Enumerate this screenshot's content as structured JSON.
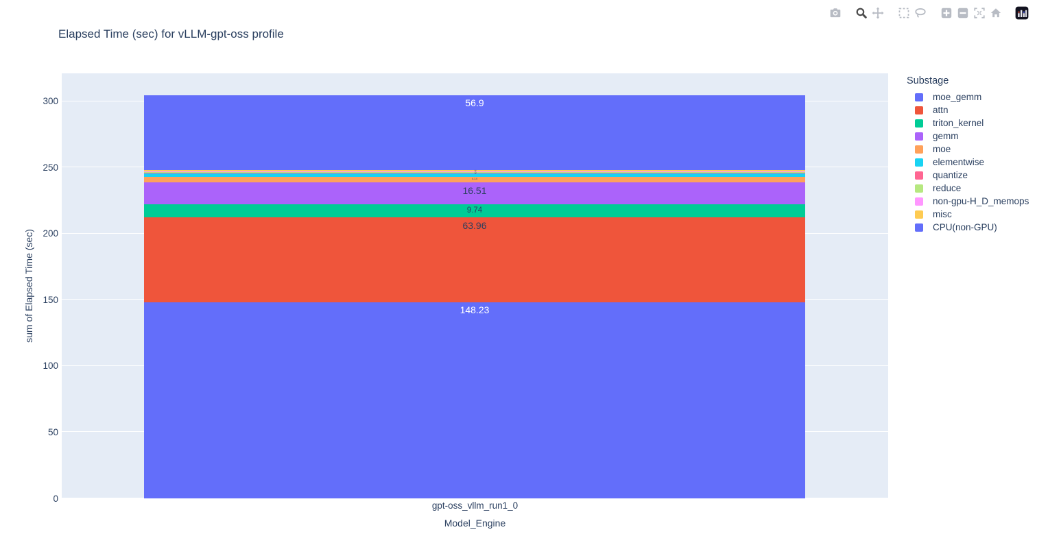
{
  "header": {
    "title": "Elapsed Time (sec) for vLLM-gpt-oss profile"
  },
  "toolbar": {
    "icons": [
      "camera",
      "zoom",
      "pan",
      "box-select",
      "lasso-select",
      "zoom-in",
      "zoom-out",
      "autoscale",
      "reset-axes",
      "plotly-logo"
    ]
  },
  "colors": {
    "plot_background": "#E5ECF6",
    "grid": "#ffffff",
    "text": "#2a3f5f",
    "modebar_icon": "#b8bcc4",
    "modebar_icon_active": "#4c4c4c"
  },
  "chart_data": {
    "type": "bar",
    "stacked": true,
    "title": "Elapsed Time (sec) for vLLM-gpt-oss profile",
    "xlabel": "Model_Engine",
    "ylabel": "sum of Elapsed Time (sec)",
    "categories": [
      "gpt-oss_vllm_run1_0"
    ],
    "ylim": [
      0,
      321
    ],
    "yticks": [
      0,
      50,
      100,
      150,
      200,
      250,
      300
    ],
    "grid": true,
    "legend": {
      "title": "Substage",
      "position": "right"
    },
    "series": [
      {
        "name": "moe_gemm",
        "color": "#636EFA",
        "value": 148.23,
        "label": "148.23",
        "label_color": "#ffffff",
        "label_size": "normal"
      },
      {
        "name": "attn",
        "color": "#EF553B",
        "value": 63.96,
        "label": "63.96",
        "label_color": "#2a3f5f",
        "label_size": "normal"
      },
      {
        "name": "triton_kernel",
        "color": "#00CC96",
        "value": 9.74,
        "label": "9.74",
        "label_color": "#2a3f5f",
        "label_size": "small"
      },
      {
        "name": "gemm",
        "color": "#AB63FA",
        "value": 16.51,
        "label": "16.51",
        "label_color": "#2a3f5f",
        "label_size": "normal"
      },
      {
        "name": "moe",
        "color": "#FFA15A",
        "value": 4.14,
        "label": "4.14",
        "label_color": "#2a3f5f",
        "label_size": "tiny"
      },
      {
        "name": "elementwise",
        "color": "#19D3F3",
        "value": 2.59,
        "label": "",
        "label_color": "#2a3f5f",
        "label_size": "normal"
      },
      {
        "name": "quantize",
        "color": "#FF6692",
        "value": 0.52,
        "label": "",
        "label_color": "#2a3f5f",
        "label_size": "normal"
      },
      {
        "name": "reduce",
        "color": "#B6E880",
        "value": 0.55,
        "label": "",
        "label_color": "#2a3f5f",
        "label_size": "normal"
      },
      {
        "name": "non-gpu-H_D_memops",
        "color": "#FF97FF",
        "value": 0.52,
        "label": "",
        "label_color": "#2a3f5f",
        "label_size": "normal"
      },
      {
        "name": "misc",
        "color": "#FECB52",
        "value": 1.04,
        "label": "1.04",
        "label_color": "#2a3f5f",
        "label_size": "tiny-vertical"
      },
      {
        "name": "CPU(non-GPU)",
        "color": "#636EFA",
        "value": 56.9,
        "label": "56.9",
        "label_color": "#ffffff",
        "label_size": "normal"
      }
    ]
  }
}
